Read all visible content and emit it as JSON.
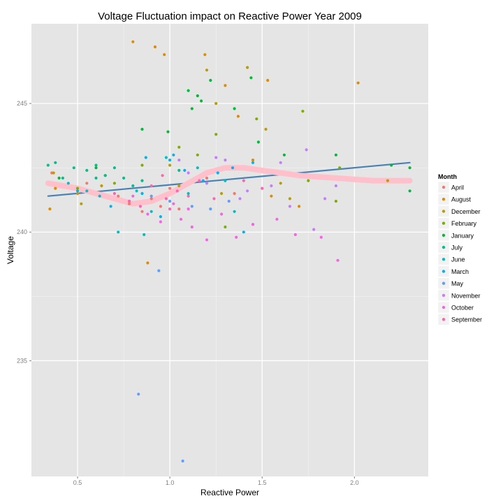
{
  "chart_data": {
    "type": "scatter",
    "title": "Voltage Fluctuation impact on Reactive Power  Year  2009",
    "xlabel": "Reactive Power",
    "ylabel": "Voltage",
    "xlim": [
      0.25,
      2.4
    ],
    "ylim": [
      230.5,
      248.1
    ],
    "x_ticks": [
      "0.5",
      "1.0",
      "1.5",
      "2.0"
    ],
    "x_tick_values": [
      0.5,
      1.0,
      1.5,
      2.0
    ],
    "y_ticks": [
      "235",
      "240",
      "245"
    ],
    "y_tick_values": [
      235,
      240,
      245
    ],
    "grid": true,
    "background": "#e5e5e5",
    "legend": {
      "title": "Month",
      "position": "right"
    },
    "series": [
      {
        "name": "April",
        "color": "#f8766d",
        "points": [
          [
            0.36,
            242.3
          ],
          [
            0.55,
            241.9
          ],
          [
            0.72,
            241.4
          ],
          [
            0.78,
            241.1
          ],
          [
            0.85,
            240.8
          ],
          [
            0.9,
            241.3
          ],
          [
            1.0,
            241.7
          ],
          [
            1.05,
            240.9
          ],
          [
            1.2,
            242.1
          ],
          [
            1.35,
            241.5
          ],
          [
            1.45,
            240.3
          ],
          [
            0.95,
            241.0
          ]
        ]
      },
      {
        "name": "August",
        "color": "#de8c00",
        "points": [
          [
            0.35,
            240.9
          ],
          [
            0.38,
            241.7
          ],
          [
            0.5,
            241.5
          ],
          [
            0.8,
            247.4
          ],
          [
            0.92,
            247.2
          ],
          [
            0.97,
            246.9
          ],
          [
            1.19,
            246.9
          ],
          [
            1.3,
            245.7
          ],
          [
            1.37,
            244.5
          ],
          [
            1.53,
            245.9
          ],
          [
            2.02,
            245.8
          ],
          [
            1.45,
            242.8
          ],
          [
            0.88,
            238.8
          ],
          [
            1.55,
            241.4
          ],
          [
            1.7,
            241.0
          ]
        ]
      },
      {
        "name": "December",
        "color": "#b79f00",
        "points": [
          [
            0.37,
            242.3
          ],
          [
            0.52,
            241.1
          ],
          [
            0.63,
            241.8
          ],
          [
            1.0,
            242.6
          ],
          [
            1.05,
            241.8
          ],
          [
            1.2,
            246.3
          ],
          [
            1.25,
            245.0
          ],
          [
            1.42,
            246.4
          ],
          [
            1.52,
            244.0
          ],
          [
            1.6,
            241.9
          ],
          [
            2.18,
            242.0
          ],
          [
            1.65,
            241.3
          ],
          [
            1.28,
            241.5
          ]
        ]
      },
      {
        "name": "February",
        "color": "#7cae00",
        "points": [
          [
            0.5,
            241.7
          ],
          [
            0.7,
            241.9
          ],
          [
            0.85,
            242.6
          ],
          [
            1.05,
            243.3
          ],
          [
            1.15,
            243.0
          ],
          [
            1.25,
            243.8
          ],
          [
            1.3,
            240.2
          ],
          [
            1.47,
            244.4
          ],
          [
            1.72,
            244.7
          ],
          [
            1.92,
            242.5
          ],
          [
            1.75,
            242.0
          ],
          [
            1.9,
            241.2
          ]
        ]
      },
      {
        "name": "January",
        "color": "#00ba38",
        "points": [
          [
            0.4,
            242.1
          ],
          [
            0.6,
            242.5
          ],
          [
            0.65,
            242.2
          ],
          [
            0.85,
            244.0
          ],
          [
            0.99,
            243.9
          ],
          [
            1.1,
            245.5
          ],
          [
            1.15,
            245.3
          ],
          [
            1.22,
            245.9
          ],
          [
            1.17,
            245.1
          ],
          [
            1.35,
            244.8
          ],
          [
            1.44,
            246.0
          ],
          [
            1.48,
            243.5
          ],
          [
            1.9,
            243.0
          ],
          [
            2.3,
            242.5
          ],
          [
            2.3,
            241.6
          ],
          [
            2.2,
            242.6
          ],
          [
            1.62,
            243.0
          ],
          [
            1.12,
            244.8
          ]
        ]
      },
      {
        "name": "July",
        "color": "#00c08b",
        "points": [
          [
            0.34,
            242.6
          ],
          [
            0.38,
            242.7
          ],
          [
            0.42,
            242.1
          ],
          [
            0.48,
            242.5
          ],
          [
            0.55,
            242.4
          ],
          [
            0.6,
            242.6
          ],
          [
            0.65,
            242.2
          ],
          [
            0.7,
            242.5
          ],
          [
            0.75,
            242.1
          ],
          [
            0.8,
            241.8
          ],
          [
            0.85,
            242.0
          ],
          [
            1.05,
            242.4
          ],
          [
            0.6,
            242.1
          ]
        ]
      },
      {
        "name": "June",
        "color": "#00bfc4",
        "points": [
          [
            0.45,
            241.9
          ],
          [
            0.55,
            241.6
          ],
          [
            0.62,
            241.4
          ],
          [
            0.72,
            240.0
          ],
          [
            0.78,
            241.2
          ],
          [
            0.86,
            239.9
          ],
          [
            0.9,
            240.8
          ],
          [
            0.98,
            242.9
          ],
          [
            1.1,
            241.5
          ],
          [
            1.2,
            241.9
          ],
          [
            1.15,
            242.5
          ],
          [
            1.3,
            242.0
          ],
          [
            1.35,
            240.8
          ],
          [
            0.82,
            241.6
          ]
        ]
      },
      {
        "name": "March",
        "color": "#00b4f0",
        "points": [
          [
            0.5,
            241.6
          ],
          [
            0.68,
            241.0
          ],
          [
            0.85,
            241.5
          ],
          [
            1.0,
            242.8
          ],
          [
            1.02,
            243.0
          ],
          [
            1.08,
            242.4
          ],
          [
            1.18,
            242.0
          ],
          [
            1.26,
            242.3
          ],
          [
            1.34,
            242.5
          ],
          [
            1.4,
            240.0
          ],
          [
            1.45,
            242.7
          ],
          [
            0.95,
            240.6
          ],
          [
            0.87,
            242.9
          ]
        ]
      },
      {
        "name": "May",
        "color": "#619cff",
        "points": [
          [
            0.83,
            233.7
          ],
          [
            0.94,
            238.5
          ],
          [
            1.07,
            231.1
          ],
          [
            1.0,
            241.2
          ],
          [
            1.12,
            241.0
          ],
          [
            1.22,
            240.9
          ],
          [
            0.9,
            241.4
          ],
          [
            1.32,
            241.2
          ]
        ]
      },
      {
        "name": "November",
        "color": "#c77cff",
        "points": [
          [
            1.05,
            242.8
          ],
          [
            1.1,
            242.3
          ],
          [
            1.2,
            241.9
          ],
          [
            1.3,
            242.8
          ],
          [
            1.42,
            241.6
          ],
          [
            1.55,
            241.8
          ],
          [
            1.65,
            241.0
          ],
          [
            1.74,
            243.2
          ],
          [
            1.78,
            240.1
          ],
          [
            1.84,
            241.3
          ],
          [
            1.9,
            241.8
          ],
          [
            1.25,
            242.9
          ],
          [
            1.38,
            241.3
          ],
          [
            1.6,
            242.7
          ]
        ]
      },
      {
        "name": "October",
        "color": "#f564e3",
        "points": [
          [
            0.8,
            241.4
          ],
          [
            0.88,
            240.7
          ],
          [
            0.95,
            240.4
          ],
          [
            1.02,
            241.1
          ],
          [
            1.06,
            240.5
          ],
          [
            1.12,
            240.2
          ],
          [
            1.2,
            239.7
          ],
          [
            1.28,
            240.7
          ],
          [
            1.36,
            239.8
          ],
          [
            1.45,
            240.3
          ],
          [
            1.58,
            240.5
          ],
          [
            1.68,
            239.9
          ],
          [
            1.82,
            239.8
          ],
          [
            1.91,
            238.9
          ],
          [
            1.1,
            240.9
          ]
        ]
      },
      {
        "name": "September",
        "color": "#ff64b0",
        "points": [
          [
            0.7,
            241.5
          ],
          [
            0.78,
            241.2
          ],
          [
            0.84,
            241.0
          ],
          [
            0.9,
            241.8
          ],
          [
            0.96,
            242.2
          ],
          [
            1.0,
            240.9
          ],
          [
            1.04,
            241.6
          ],
          [
            1.1,
            241.4
          ],
          [
            1.16,
            242.0
          ],
          [
            1.24,
            241.3
          ],
          [
            1.4,
            242.0
          ],
          [
            1.5,
            241.7
          ],
          [
            0.98,
            241.3
          ]
        ]
      }
    ],
    "lines": [
      {
        "kind": "linear fit",
        "color": "#4682b4",
        "points": [
          [
            0.34,
            241.4
          ],
          [
            2.3,
            242.7
          ]
        ]
      },
      {
        "kind": "smooth",
        "color": "#ffc0cb",
        "points": [
          [
            0.34,
            241.9
          ],
          [
            0.5,
            241.7
          ],
          [
            0.65,
            241.4
          ],
          [
            0.8,
            241.1
          ],
          [
            0.9,
            241.2
          ],
          [
            1.0,
            241.5
          ],
          [
            1.1,
            241.9
          ],
          [
            1.2,
            242.3
          ],
          [
            1.3,
            242.5
          ],
          [
            1.4,
            242.5
          ],
          [
            1.5,
            242.4
          ],
          [
            1.6,
            242.3
          ],
          [
            1.7,
            242.2
          ],
          [
            1.9,
            242.1
          ],
          [
            2.1,
            242.0
          ],
          [
            2.3,
            242.0
          ]
        ]
      }
    ]
  }
}
